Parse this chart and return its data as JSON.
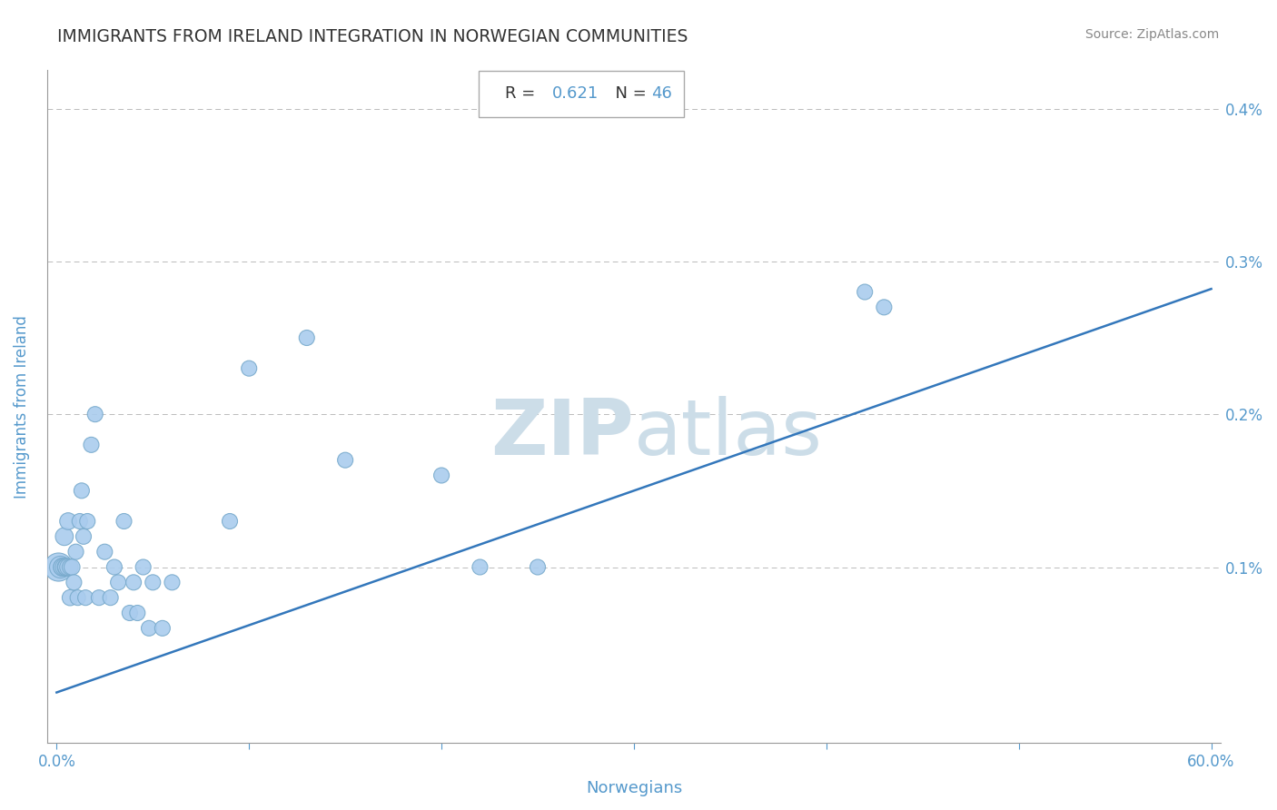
{
  "title": "IMMIGRANTS FROM IRELAND INTEGRATION IN NORWEGIAN COMMUNITIES",
  "source": "Source: ZipAtlas.com",
  "xlabel": "Norwegians",
  "ylabel": "Immigrants from Ireland",
  "R": 0.621,
  "N": 46,
  "xlim": [
    0.0,
    0.6
  ],
  "ylim": [
    0.0,
    0.004
  ],
  "scatter_x": [
    0.001,
    0.002,
    0.003,
    0.003,
    0.004,
    0.004,
    0.005,
    0.005,
    0.006,
    0.006,
    0.007,
    0.007,
    0.008,
    0.009,
    0.01,
    0.011,
    0.012,
    0.013,
    0.014,
    0.015,
    0.016,
    0.018,
    0.02,
    0.022,
    0.025,
    0.028,
    0.03,
    0.032,
    0.035,
    0.038,
    0.04,
    0.042,
    0.045,
    0.048,
    0.05,
    0.055,
    0.06,
    0.09,
    0.1,
    0.13,
    0.15,
    0.2,
    0.22,
    0.25,
    0.42,
    0.43
  ],
  "scatter_y": [
    0.001,
    0.001,
    0.001,
    0.001,
    0.001,
    0.0012,
    0.001,
    0.001,
    0.001,
    0.0013,
    0.001,
    0.0008,
    0.001,
    0.0009,
    0.0011,
    0.0008,
    0.0013,
    0.0015,
    0.0012,
    0.0008,
    0.0013,
    0.0018,
    0.002,
    0.0008,
    0.0011,
    0.0008,
    0.001,
    0.0009,
    0.0013,
    0.0007,
    0.0009,
    0.0007,
    0.001,
    0.0006,
    0.0009,
    0.0006,
    0.0009,
    0.0013,
    0.0023,
    0.0025,
    0.0017,
    0.0016,
    0.001,
    0.001,
    0.0028,
    0.0027
  ],
  "scatter_sizes": [
    500,
    300,
    200,
    200,
    200,
    200,
    200,
    180,
    180,
    180,
    160,
    160,
    160,
    150,
    150,
    150,
    150,
    150,
    150,
    150,
    150,
    150,
    150,
    150,
    150,
    150,
    150,
    150,
    150,
    150,
    150,
    150,
    150,
    150,
    150,
    150,
    150,
    150,
    150,
    150,
    150,
    150,
    150,
    150,
    150,
    150
  ],
  "dot_color": "#aaccee",
  "dot_edge_color": "#78aacc",
  "line_color": "#3377bb",
  "grid_color": "#bbbbbb",
  "title_color": "#333333",
  "axis_label_color": "#5599cc",
  "tick_color": "#5599cc",
  "watermark_color": "#ccdde8",
  "regression_intercept": 0.00018,
  "regression_slope": 0.0044,
  "annot_R_label_color": "#333333",
  "annot_R_value_color": "#5599cc",
  "annot_N_label_color": "#333333",
  "annot_N_value_color": "#5599cc"
}
